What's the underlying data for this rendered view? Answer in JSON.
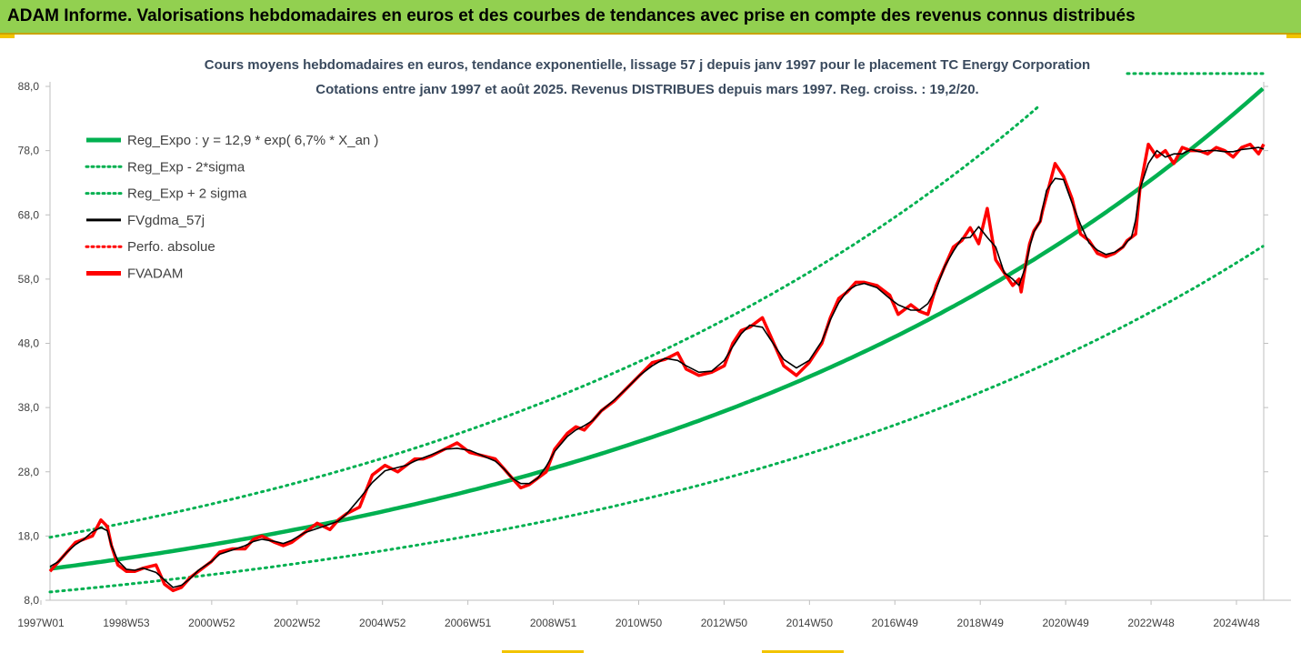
{
  "banner": {
    "title": "ADAM Informe. Valorisations hebdomadaires en euros et des courbes de tendances avec prise en compte des revenus connus distribués"
  },
  "colors": {
    "banner_bg": "#92d050",
    "reg_expo": "#00b050",
    "sigma_bands": "#00b050",
    "fvgdma": "#000000",
    "perfo_absolue": "#ff0000",
    "fvadam": "#ff0000"
  },
  "chart_data": {
    "type": "line",
    "title_line1": "Cours moyens hebdomadaires en euros, tendance exponentielle, lissage 57 j depuis janv 1997 pour le placement TC Energy Corporation",
    "title_line2": "Cotations entre janv 1997 et août 2025. Revenus DISTRIBUES depuis mars 1997. Reg. croiss. : 19,2/20.",
    "x_start_year": 1997.0,
    "x_end_year": 2025.62,
    "x_tick_labels": [
      "1997W01",
      "1998W53",
      "2000W52",
      "2002W52",
      "2004W52",
      "2006W51",
      "2008W51",
      "2010W50",
      "2012W50",
      "2014W50",
      "2016W49",
      "2018W49",
      "2020W49",
      "2022W48",
      "2024W48"
    ],
    "y_ticks": [
      "8,0",
      "18,0",
      "28,0",
      "38,0",
      "48,0",
      "58,0",
      "68,0",
      "78,0",
      "88,0"
    ],
    "ylim": [
      8,
      88
    ],
    "grid": false,
    "legend_position": "top-left",
    "legend": [
      {
        "label": "Reg_Expo : y = 12,9 * exp( 6,7% *  X_an )",
        "style": "solid-thick",
        "color": "#00b050"
      },
      {
        "label": "Reg_Exp - 2*sigma",
        "style": "dotted",
        "color": "#00b050"
      },
      {
        "label": "Reg_Exp + 2 sigma",
        "style": "dotted",
        "color": "#00b050"
      },
      {
        "label": "FVgdma_57j",
        "style": "solid",
        "color": "#000000"
      },
      {
        "label": "Perfo. absolue",
        "style": "dotted",
        "color": "#ff0000"
      },
      {
        "label": "FVADAM",
        "style": "solid-thick",
        "color": "#ff0000"
      }
    ],
    "reg_expo": {
      "a": 12.9,
      "rate": 0.067
    },
    "sigma_factors": {
      "minus_2_sigma": 0.72,
      "plus_2_sigma": 1.38
    },
    "series": [
      {
        "name": "FVADAM",
        "x": [
          1997.0,
          1997.2,
          1997.4,
          1997.6,
          1997.8,
          1998.0,
          1998.2,
          1998.35,
          1998.45,
          1998.6,
          1998.8,
          1999.0,
          1999.2,
          1999.5,
          1999.7,
          1999.9,
          2000.1,
          2000.3,
          2000.5,
          2000.8,
          2001.0,
          2001.3,
          2001.6,
          2001.8,
          2002.0,
          2002.3,
          2002.5,
          2002.7,
          2003.0,
          2003.3,
          2003.6,
          2003.8,
          2004.0,
          2004.3,
          2004.6,
          2004.9,
          2005.2,
          2005.4,
          2005.6,
          2005.8,
          2006.0,
          2006.3,
          2006.6,
          2006.9,
          2007.2,
          2007.5,
          2007.7,
          2007.9,
          2008.1,
          2008.3,
          2008.5,
          2008.7,
          2008.9,
          2009.2,
          2009.4,
          2009.6,
          2009.8,
          2010.0,
          2010.3,
          2010.6,
          2010.9,
          2011.2,
          2011.5,
          2011.8,
          2012.0,
          2012.3,
          2012.6,
          2012.9,
          2013.1,
          2013.3,
          2013.5,
          2013.8,
          2014.0,
          2014.3,
          2014.6,
          2014.9,
          2015.2,
          2015.4,
          2015.6,
          2015.8,
          2016.0,
          2016.2,
          2016.5,
          2016.8,
          2017.0,
          2017.3,
          2017.5,
          2017.7,
          2017.9,
          2018.1,
          2018.3,
          2018.5,
          2018.7,
          2018.9,
          2019.1,
          2019.3,
          2019.5,
          2019.7,
          2019.85,
          2019.9,
          2020.0,
          2020.1,
          2020.2,
          2020.35,
          2020.4,
          2020.5,
          2020.7,
          2020.9,
          2021.1,
          2021.3,
          2021.5,
          2021.7,
          2021.9,
          2022.1,
          2022.3,
          2022.4,
          2022.5,
          2022.6,
          2022.7,
          2022.9,
          2023.1,
          2023.3,
          2023.5,
          2023.7,
          2023.9,
          2024.1,
          2024.3,
          2024.5,
          2024.7,
          2024.9,
          2025.1,
          2025.3,
          2025.5,
          2025.62
        ],
        "y": [
          12.5,
          14.0,
          15.5,
          17.0,
          17.5,
          18.0,
          20.5,
          19.5,
          16.5,
          13.5,
          12.5,
          12.5,
          13.0,
          13.5,
          10.5,
          9.5,
          10.0,
          11.5,
          12.5,
          14.0,
          15.5,
          16.0,
          16.0,
          17.5,
          18.0,
          17.0,
          16.5,
          17.0,
          18.5,
          20.0,
          19.0,
          20.5,
          21.5,
          22.5,
          27.5,
          29.0,
          28.0,
          29.0,
          30.0,
          30.0,
          30.5,
          31.5,
          32.5,
          31.0,
          30.5,
          30.0,
          28.5,
          27.0,
          25.5,
          26.0,
          27.0,
          28.0,
          31.5,
          34.0,
          35.0,
          34.5,
          36.0,
          37.5,
          39.0,
          41.0,
          43.0,
          45.0,
          45.5,
          46.5,
          44.0,
          43.0,
          43.5,
          44.5,
          48.0,
          50.0,
          50.5,
          52.0,
          49.0,
          44.5,
          43.0,
          45.0,
          48.0,
          52.0,
          55.0,
          56.0,
          57.5,
          57.5,
          57.0,
          55.5,
          52.5,
          54.0,
          53.0,
          52.5,
          57.0,
          60.0,
          63.0,
          64.0,
          66.0,
          63.5,
          69.0,
          61.0,
          59.0,
          57.0,
          58.0,
          56.0,
          60.0,
          63.5,
          65.5,
          67.0,
          68.5,
          71.0,
          76.0,
          74.0,
          70.5,
          65.0,
          64.0,
          62.0,
          61.5,
          62.0,
          63.0,
          64.0,
          64.5,
          65.0,
          72.0,
          79.0,
          77.0,
          78.0,
          76.0,
          78.5,
          78.0,
          78.0,
          77.5,
          78.5,
          78.0,
          77.0,
          78.5,
          79.0,
          77.5,
          79.0
        ]
      }
    ]
  }
}
